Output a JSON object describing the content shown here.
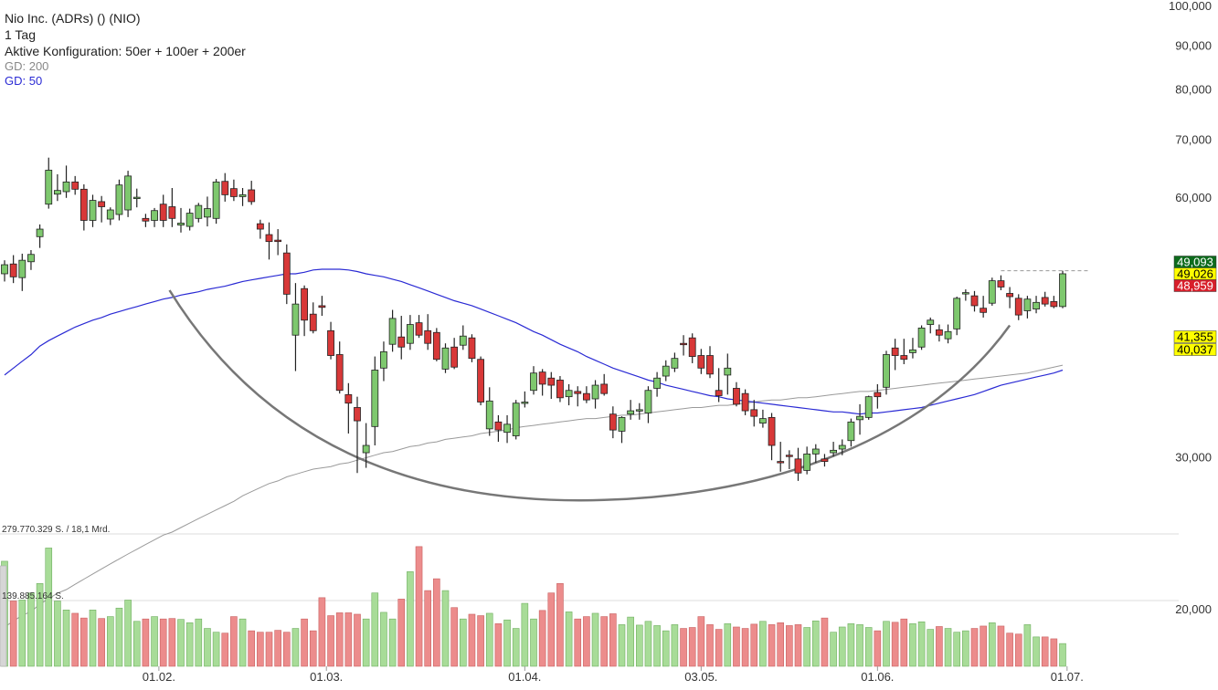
{
  "header": {
    "instrument": "Nio Inc. (ADRs) () (NIO)",
    "interval": "1 Tag",
    "config": "Aktive Konfiguration: 50er + 100er + 200er",
    "gd200_label": "GD: 200",
    "gd50_label": "GD: 50"
  },
  "colors": {
    "up": "#7ec86e",
    "down": "#d83838",
    "gd50": "#2a2ad4",
    "gd200": "#9a9a9a",
    "arc": "#777777",
    "vol_up": "#a8dc98",
    "vol_down": "#ec8c8c"
  },
  "price_tags": [
    {
      "value": "49,093",
      "bg": "#0d6b1c",
      "fg": "#ffffff"
    },
    {
      "value": "49,026",
      "bg": "#ffff00",
      "fg": "#000000"
    },
    {
      "value": "48,959",
      "bg": "#d81e2a",
      "fg": "#ffffff"
    },
    {
      "value": "41,355",
      "bg": "#ffff00",
      "fg": "#000000"
    },
    {
      "value": "40,037",
      "bg": "#ffff00",
      "fg": "#000000"
    }
  ],
  "volume_labels": {
    "max": "279.770.329 S. / 18,1 Mrd.",
    "mid": "139.885.164 S."
  },
  "chart_data": {
    "type": "candlestick",
    "y_scale": "log",
    "ylim": [
      19000,
      100000
    ],
    "y_ticks": [
      {
        "value": 100000,
        "label": "100,000"
      },
      {
        "value": 90000,
        "label": "90,000"
      },
      {
        "value": 80000,
        "label": "80,000"
      },
      {
        "value": 70000,
        "label": "70,000"
      },
      {
        "value": 60000,
        "label": "60,000"
      },
      {
        "value": 30000,
        "label": "30,000"
      },
      {
        "value": 20000,
        "label": "20,000"
      }
    ],
    "x_ticks": [
      {
        "index": 17.5,
        "label": "01.02."
      },
      {
        "index": 36.5,
        "label": "01.03."
      },
      {
        "index": 59,
        "label": "01.04."
      },
      {
        "index": 79,
        "label": "03.05."
      },
      {
        "index": 99,
        "label": "01.06."
      },
      {
        "index": 120.5,
        "label": "01.07."
      }
    ],
    "volume_max": 279770329,
    "ohlc": [
      [
        49.0,
        50.8,
        48.0,
        50.2
      ],
      [
        50.3,
        51.5,
        47.8,
        48.6
      ],
      [
        48.5,
        51.7,
        46.8,
        50.8
      ],
      [
        50.6,
        52.2,
        49.5,
        51.6
      ],
      [
        54.1,
        55.9,
        52.5,
        55.2
      ],
      [
        59.0,
        66.8,
        58.3,
        64.6
      ],
      [
        60.6,
        63.9,
        59.5,
        61.2
      ],
      [
        61.0,
        65.4,
        60.0,
        62.6
      ],
      [
        62.6,
        63.6,
        60.5,
        61.4
      ],
      [
        61.4,
        62.2,
        55.0,
        56.5
      ],
      [
        56.5,
        60.5,
        55.5,
        59.6
      ],
      [
        59.4,
        60.3,
        56.2,
        58.6
      ],
      [
        56.7,
        58.5,
        55.8,
        58.1
      ],
      [
        57.4,
        63.0,
        56.5,
        62.1
      ],
      [
        58.1,
        64.5,
        57.0,
        63.6
      ],
      [
        60.1,
        61.5,
        58.5,
        60.1
      ],
      [
        56.8,
        57.5,
        55.5,
        56.4
      ],
      [
        56.5,
        58.4,
        55.5,
        58.0
      ],
      [
        59.0,
        60.5,
        55.5,
        56.5
      ],
      [
        58.6,
        61.6,
        55.5,
        56.8
      ],
      [
        55.8,
        58.4,
        54.7,
        56.1
      ],
      [
        55.6,
        58.3,
        55.0,
        57.6
      ],
      [
        56.8,
        59.2,
        56.2,
        58.8
      ],
      [
        57.0,
        60.2,
        55.6,
        58.3
      ],
      [
        56.8,
        63.1,
        56.0,
        62.6
      ],
      [
        62.7,
        64.1,
        59.4,
        60.5
      ],
      [
        61.5,
        63.0,
        59.5,
        60.2
      ],
      [
        60.2,
        61.6,
        58.7,
        60.5
      ],
      [
        61.3,
        62.8,
        58.9,
        59.4
      ],
      [
        56.0,
        56.6,
        53.8,
        55.2
      ],
      [
        54.4,
        56.2,
        50.9,
        53.4
      ],
      [
        53.6,
        55.2,
        51.5,
        53.4
      ],
      [
        51.8,
        53.0,
        45.2,
        46.4
      ],
      [
        41.6,
        47.8,
        37.8,
        45.2
      ],
      [
        47.1,
        47.5,
        41.5,
        43.3
      ],
      [
        44.0,
        45.4,
        41.8,
        42.1
      ],
      [
        45.0,
        46.2,
        43.8,
        44.8
      ],
      [
        42.1,
        43.1,
        39.0,
        39.4
      ],
      [
        39.5,
        40.9,
        35.6,
        35.9
      ],
      [
        35.5,
        36.6,
        32.0,
        34.7
      ],
      [
        34.3,
        35.3,
        28.8,
        33.1
      ],
      [
        30.4,
        32.9,
        29.2,
        31.0
      ],
      [
        32.6,
        39.3,
        31.0,
        37.9
      ],
      [
        38.1,
        40.9,
        36.8,
        39.8
      ],
      [
        40.6,
        44.5,
        39.8,
        43.5
      ],
      [
        41.4,
        43.8,
        39.0,
        40.3
      ],
      [
        40.7,
        43.9,
        40.0,
        42.8
      ],
      [
        43.0,
        43.9,
        41.3,
        41.6
      ],
      [
        42.1,
        44.0,
        40.0,
        40.7
      ],
      [
        41.9,
        42.4,
        38.8,
        39.0
      ],
      [
        38.0,
        40.7,
        37.6,
        40.2
      ],
      [
        40.3,
        41.3,
        38.0,
        38.2
      ],
      [
        40.5,
        42.7,
        40.0,
        41.5
      ],
      [
        41.3,
        41.7,
        38.7,
        39.1
      ],
      [
        39.0,
        39.3,
        34.5,
        34.8
      ],
      [
        32.4,
        36.2,
        31.8,
        34.9
      ],
      [
        33.0,
        33.6,
        31.3,
        32.3
      ],
      [
        32.1,
        33.6,
        31.2,
        32.8
      ],
      [
        31.8,
        35.0,
        31.5,
        34.7
      ],
      [
        34.8,
        35.8,
        34.3,
        34.8
      ],
      [
        35.9,
        38.3,
        35.5,
        37.6
      ],
      [
        37.7,
        38.0,
        35.4,
        36.5
      ],
      [
        37.1,
        37.7,
        35.1,
        36.4
      ],
      [
        36.9,
        37.3,
        34.8,
        35.2
      ],
      [
        35.3,
        36.5,
        34.5,
        35.9
      ],
      [
        35.8,
        36.3,
        34.4,
        35.6
      ],
      [
        35.6,
        36.3,
        34.7,
        35.0
      ],
      [
        35.1,
        36.9,
        34.2,
        36.4
      ],
      [
        36.5,
        37.5,
        35.4,
        35.6
      ],
      [
        33.7,
        34.4,
        31.6,
        32.3
      ],
      [
        32.2,
        33.5,
        31.2,
        33.4
      ],
      [
        33.7,
        35.0,
        33.2,
        34.0
      ],
      [
        34.0,
        34.7,
        33.2,
        34.1
      ],
      [
        33.8,
        36.3,
        32.9,
        35.9
      ],
      [
        36.1,
        37.7,
        35.3,
        37.1
      ],
      [
        37.3,
        38.9,
        36.8,
        38.3
      ],
      [
        38.1,
        39.7,
        37.7,
        39.1
      ],
      [
        40.7,
        41.6,
        39.4,
        40.6
      ],
      [
        41.3,
        41.8,
        38.6,
        39.3
      ],
      [
        39.4,
        40.1,
        37.5,
        38.1
      ],
      [
        39.4,
        40.4,
        37.1,
        37.5
      ],
      [
        35.9,
        38.1,
        34.8,
        35.4
      ],
      [
        37.4,
        39.6,
        35.5,
        38.1
      ],
      [
        36.1,
        36.7,
        34.4,
        34.6
      ],
      [
        35.6,
        36.0,
        33.6,
        34.0
      ],
      [
        34.1,
        35.0,
        32.6,
        33.5
      ],
      [
        32.9,
        34.1,
        32.5,
        33.3
      ],
      [
        33.4,
        33.8,
        29.8,
        31.0
      ],
      [
        29.7,
        31.3,
        28.9,
        29.6
      ],
      [
        30.2,
        30.6,
        29.1,
        30.1
      ],
      [
        29.9,
        30.8,
        28.2,
        28.8
      ],
      [
        29.0,
        30.9,
        28.7,
        30.3
      ],
      [
        30.3,
        31.1,
        29.6,
        30.7
      ],
      [
        29.9,
        30.3,
        29.3,
        29.7
      ],
      [
        30.4,
        31.3,
        30.1,
        30.6
      ],
      [
        30.7,
        31.5,
        30.2,
        31.0
      ],
      [
        31.4,
        33.3,
        30.9,
        33.0
      ],
      [
        33.2,
        34.6,
        31.9,
        33.5
      ],
      [
        33.4,
        35.4,
        33.2,
        35.3
      ],
      [
        35.7,
        36.5,
        34.2,
        35.3
      ],
      [
        36.2,
        39.9,
        35.5,
        39.5
      ],
      [
        40.2,
        41.2,
        37.9,
        39.4
      ],
      [
        39.4,
        41.2,
        38.5,
        39.0
      ],
      [
        39.7,
        41.3,
        39.1,
        40.0
      ],
      [
        40.3,
        42.7,
        40.0,
        42.4
      ],
      [
        42.8,
        43.6,
        41.8,
        43.3
      ],
      [
        42.2,
        42.8,
        40.9,
        41.6
      ],
      [
        41.2,
        42.8,
        40.7,
        42.0
      ],
      [
        42.3,
        46.1,
        41.6,
        45.9
      ],
      [
        46.6,
        47.0,
        45.6,
        46.6
      ],
      [
        46.2,
        46.8,
        44.3,
        45.0
      ],
      [
        44.7,
        46.2,
        43.6,
        44.2
      ],
      [
        45.3,
        48.5,
        45.0,
        48.1
      ],
      [
        48.1,
        48.8,
        46.9,
        47.3
      ],
      [
        46.5,
        47.3,
        44.7,
        46.1
      ],
      [
        45.9,
        46.4,
        43.3,
        43.9
      ],
      [
        44.4,
        46.2,
        43.5,
        45.8
      ],
      [
        44.6,
        46.2,
        44.1,
        45.4
      ],
      [
        46.0,
        46.7,
        44.9,
        45.2
      ],
      [
        45.5,
        46.2,
        44.7,
        44.9
      ],
      [
        44.9,
        49.4,
        44.7,
        49.0
      ]
    ],
    "volume": [
      222000000.0,
      138000000.0,
      140000000.0,
      155000000.0,
      175000000.0,
      250000000.0,
      138000000.0,
      119000000.0,
      112000000.0,
      102000000.0,
      119000000.0,
      101000000.0,
      105000000.0,
      123000000.0,
      140000000.0,
      95000000.0,
      100000000.0,
      105000000.0,
      100000000.0,
      101000000.0,
      99000000.0,
      92000000.0,
      100000000.0,
      80000000.0,
      72000000.0,
      70000000.0,
      105000000.0,
      100000000.0,
      75000000.0,
      72000000.0,
      72000000.0,
      76000000.0,
      72000000.0,
      80000000.0,
      100000000.0,
      75000000.0,
      145000000.0,
      107000000.0,
      113000000.0,
      113000000.0,
      110000000.0,
      100000000.0,
      155000000.0,
      114000000.0,
      100000000.0,
      142000000.0,
      200000000.0,
      253000000.0,
      160000000.0,
      185000000.0,
      160000000.0,
      124000000.0,
      100000000.0,
      110000000.0,
      107000000.0,
      112000000.0,
      90000000.0,
      98000000.0,
      80000000.0,
      133000000.0,
      100000000.0,
      118000000.0,
      155000000.0,
      175000000.0,
      115000000.0,
      100000000.0,
      105000000.0,
      112000000.0,
      105000000.0,
      111000000.0,
      88000000.0,
      104000000.0,
      87000000.0,
      95000000.0,
      86000000.0,
      75000000.0,
      88000000.0,
      80000000.0,
      82000000.0,
      105000000.0,
      88000000.0,
      78000000.0,
      90000000.0,
      83000000.0,
      80000000.0,
      89000000.0,
      95000000.0,
      88000000.0,
      92000000.0,
      86000000.0,
      88000000.0,
      82000000.0,
      96000000.0,
      102000000.0,
      72000000.0,
      83000000.0,
      90000000.0,
      88000000.0,
      82000000.0,
      75000000.0,
      95000000.0,
      93000000.0,
      100000000.0,
      90000000.0,
      94000000.0,
      78000000.0,
      84000000.0,
      80000000.0,
      72000000.0,
      75000000.0,
      80000000.0,
      85000000.0,
      92000000.0,
      85000000.0,
      70000000.0,
      68000000.0,
      88000000.0,
      62000000.0,
      62000000.0,
      58000000.0,
      48000000.0
    ],
    "gd50": [
      37.4,
      38.1,
      38.8,
      39.5,
      40.4,
      41.0,
      41.5,
      42.0,
      42.5,
      42.9,
      43.3,
      43.6,
      44.0,
      44.3,
      44.6,
      44.9,
      45.2,
      45.5,
      45.8,
      46.0,
      46.3,
      46.5,
      46.7,
      47.0,
      47.2,
      47.4,
      47.7,
      48.0,
      48.2,
      48.4,
      48.6,
      48.8,
      49.0,
      49.0,
      49.2,
      49.5,
      49.6,
      49.6,
      49.6,
      49.5,
      49.3,
      49.0,
      48.8,
      48.6,
      48.3,
      48.0,
      47.6,
      47.2,
      46.8,
      46.4,
      46.0,
      45.6,
      45.3,
      45.0,
      44.6,
      44.2,
      43.8,
      43.4,
      43.0,
      42.5,
      42.0,
      41.6,
      41.1,
      40.6,
      40.2,
      39.8,
      39.3,
      38.9,
      38.5,
      38.1,
      37.8,
      37.5,
      37.2,
      36.9,
      36.7,
      36.4,
      36.2,
      36.0,
      35.8,
      35.6,
      35.4,
      35.3,
      35.1,
      35.0,
      34.9,
      34.8,
      34.7,
      34.6,
      34.5,
      34.4,
      34.3,
      34.2,
      34.1,
      34.0,
      33.9,
      33.9,
      33.8,
      33.7,
      33.8,
      33.8,
      33.9,
      34.0,
      34.1,
      34.2,
      34.3,
      34.5,
      34.7,
      34.9,
      35.1,
      35.3,
      35.5,
      35.8,
      36.1,
      36.4,
      36.6,
      36.8,
      37.0,
      37.2,
      37.4,
      37.6,
      37.9
    ],
    "gd200": [
      19.1,
      19.4,
      19.7,
      19.9,
      20.3,
      20.6,
      20.9,
      21.1,
      21.4,
      21.7,
      22.0,
      22.3,
      22.6,
      22.9,
      23.2,
      23.5,
      23.8,
      24.1,
      24.4,
      24.6,
      24.9,
      25.2,
      25.5,
      25.8,
      26.1,
      26.4,
      26.7,
      27.1,
      27.4,
      27.7,
      28.0,
      28.2,
      28.5,
      28.7,
      28.9,
      29.1,
      29.2,
      29.3,
      29.5,
      29.6,
      29.8,
      30.0,
      30.2,
      30.4,
      30.5,
      30.7,
      30.9,
      31.0,
      31.2,
      31.3,
      31.5,
      31.6,
      31.7,
      31.8,
      32.0,
      32.1,
      32.2,
      32.3,
      32.5,
      32.6,
      32.7,
      32.8,
      32.9,
      33.0,
      33.1,
      33.2,
      33.3,
      33.3,
      33.4,
      33.5,
      33.6,
      33.6,
      33.7,
      33.8,
      33.9,
      34.0,
      34.1,
      34.2,
      34.3,
      34.3,
      34.4,
      34.5,
      34.5,
      34.6,
      34.7,
      34.8,
      34.9,
      35.0,
      35.0,
      35.1,
      35.2,
      35.2,
      35.3,
      35.4,
      35.5,
      35.6,
      35.7,
      35.8,
      35.8,
      35.9,
      36.0,
      36.1,
      36.2,
      36.3,
      36.4,
      36.5,
      36.6,
      36.7,
      36.8,
      36.9,
      37.0,
      37.1,
      37.2,
      37.3,
      37.4,
      37.5,
      37.6,
      37.8,
      38.0,
      38.2,
      38.4
    ]
  }
}
